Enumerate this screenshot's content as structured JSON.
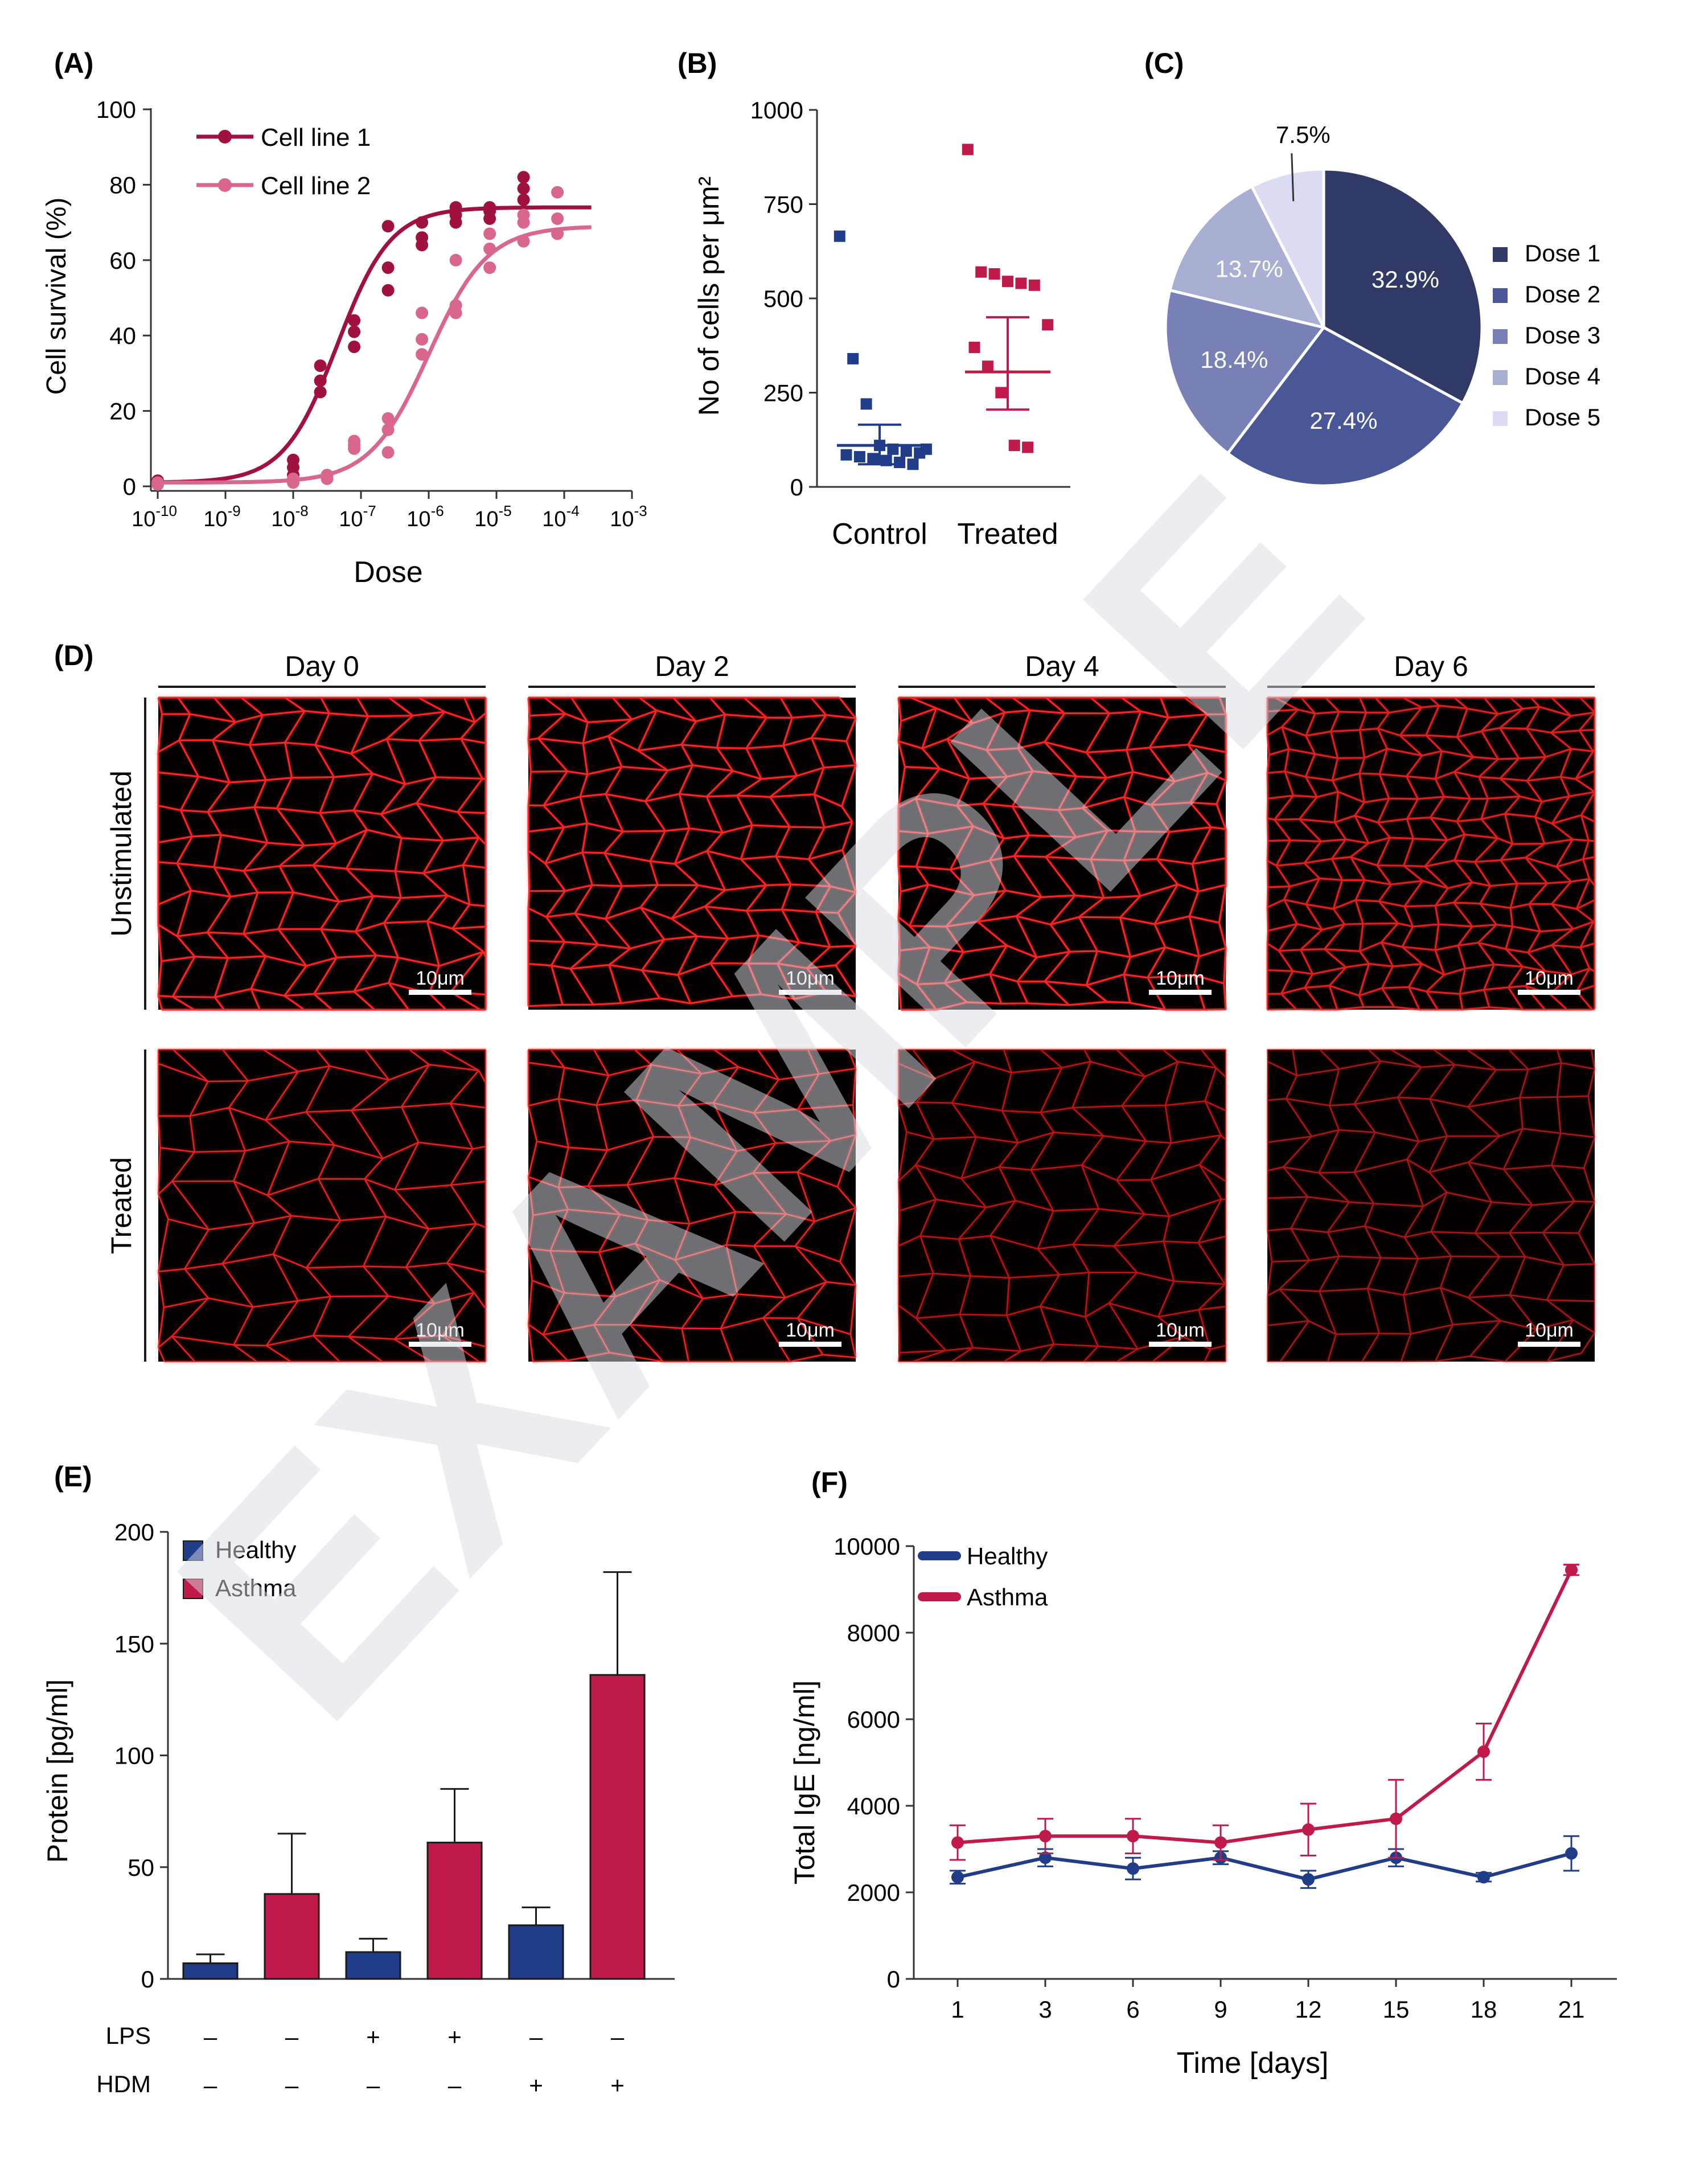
{
  "colors": {
    "cellline1": "#a0123d",
    "cellline2": "#d8668f",
    "navy": "#213d8a",
    "crimson": "#c01a4a",
    "pie": [
      "#313a66",
      "#4a5796",
      "#7880b5",
      "#a9aed3",
      "#dadcf3"
    ],
    "micro_edge": "#ff2020",
    "watermark": "#d9dce3"
  },
  "watermark": "EXAMPLE",
  "panel_labels": {
    "a": "(A)",
    "b": "(B)",
    "c": "(C)",
    "d": "(D)",
    "e": "(E)",
    "f": "(F)"
  },
  "chart_data": [
    {
      "id": "A",
      "type": "scatter",
      "xscale": "log",
      "xlabel": "Dose",
      "ylabel": "Cell survival (%)",
      "xlim_exp": [
        -10,
        -3
      ],
      "xticks_exp": [
        "-10",
        "-9",
        "-8",
        "-7",
        "-6",
        "-5",
        "-4",
        "-3"
      ],
      "xtick_base": "10",
      "ylim": [
        0,
        100
      ],
      "yticks": [
        "0",
        "20",
        "40",
        "60",
        "80",
        "100"
      ],
      "legend": "top-left",
      "series": [
        {
          "name": "Cell line 1",
          "points": [
            [
              -10,
              1
            ],
            [
              -10,
              1.5
            ],
            [
              -8,
              3
            ],
            [
              -8,
              5
            ],
            [
              -8,
              7
            ],
            [
              -7.6,
              25
            ],
            [
              -7.6,
              28
            ],
            [
              -7.6,
              32
            ],
            [
              -7.1,
              37
            ],
            [
              -7.1,
              41
            ],
            [
              -7.1,
              44
            ],
            [
              -6.6,
              52
            ],
            [
              -6.6,
              58
            ],
            [
              -6.6,
              69
            ],
            [
              -6.1,
              64
            ],
            [
              -6.1,
              66
            ],
            [
              -6.1,
              70
            ],
            [
              -5.6,
              70
            ],
            [
              -5.6,
              72
            ],
            [
              -5.6,
              74
            ],
            [
              -5.1,
              71
            ],
            [
              -5.1,
              73
            ],
            [
              -5.1,
              74
            ],
            [
              -4.6,
              76
            ],
            [
              -4.6,
              79
            ],
            [
              -4.6,
              82
            ]
          ],
          "fit": {
            "bottom": 1,
            "top": 74,
            "logec50": -7.35,
            "hill": 1.1
          }
        },
        {
          "name": "Cell line 2",
          "points": [
            [
              -10,
              0.5
            ],
            [
              -10,
              1
            ],
            [
              -8,
              1
            ],
            [
              -8,
              2
            ],
            [
              -7.5,
              2
            ],
            [
              -7.5,
              3
            ],
            [
              -7.1,
              10
            ],
            [
              -7.1,
              11
            ],
            [
              -7.1,
              12
            ],
            [
              -6.6,
              9
            ],
            [
              -6.6,
              15
            ],
            [
              -6.6,
              18
            ],
            [
              -6.1,
              35
            ],
            [
              -6.1,
              39
            ],
            [
              -6.1,
              46
            ],
            [
              -5.6,
              46
            ],
            [
              -5.6,
              48
            ],
            [
              -5.6,
              60
            ],
            [
              -5.1,
              58
            ],
            [
              -5.1,
              63
            ],
            [
              -5.1,
              67
            ],
            [
              -4.6,
              65
            ],
            [
              -4.6,
              70
            ],
            [
              -4.6,
              72
            ],
            [
              -4.1,
              67
            ],
            [
              -4.1,
              71
            ],
            [
              -4.1,
              78
            ]
          ],
          "fit": {
            "bottom": 1,
            "top": 69,
            "logec50": -6.0,
            "hill": 1.0
          }
        }
      ]
    },
    {
      "id": "B",
      "type": "scatter",
      "xlabel": "",
      "ylabel": "No of cells per μm²",
      "categories": [
        "Control",
        "Treated"
      ],
      "ylim": [
        0,
        1000
      ],
      "yticks": [
        "0",
        "250",
        "500",
        "750",
        "1000"
      ],
      "series": [
        {
          "name": "Control",
          "values": [
            665,
            340,
            220,
            110,
            100,
            95,
            90,
            85,
            80,
            75,
            70,
            65,
            60,
            100
          ],
          "mean": 110,
          "err_low": 60,
          "err_high": 165
        },
        {
          "name": "Treated",
          "values": [
            895,
            570,
            565,
            545,
            540,
            535,
            430,
            370,
            320,
            250,
            110,
            105
          ],
          "mean": 305,
          "err_low": 205,
          "err_high": 450
        }
      ]
    },
    {
      "id": "C",
      "type": "pie",
      "labels": [
        "Dose 1",
        "Dose 2",
        "Dose 3",
        "Dose 4",
        "Dose 5"
      ],
      "values": [
        32.9,
        27.4,
        18.4,
        13.7,
        7.5
      ],
      "value_labels": [
        "32.9%",
        "27.4%",
        "18.4%",
        "13.7%",
        "7.5%"
      ],
      "legend": "right"
    },
    {
      "id": "E",
      "type": "bar",
      "ylabel": "Protein  [pg/ml]",
      "ylim": [
        0,
        200
      ],
      "yticks": [
        "0",
        "50",
        "100",
        "150",
        "200"
      ],
      "legend": "top-left",
      "series_names": [
        "Healthy",
        "Asthma"
      ],
      "bars": [
        {
          "series": "Healthy",
          "value": 7,
          "err": 11
        },
        {
          "series": "Asthma",
          "value": 38,
          "err": 65
        },
        {
          "series": "Healthy",
          "value": 12,
          "err": 18
        },
        {
          "series": "Asthma",
          "value": 61,
          "err": 85
        },
        {
          "series": "Healthy",
          "value": 24,
          "err": 32
        },
        {
          "series": "Asthma",
          "value": 136,
          "err": 182
        }
      ],
      "conditions": [
        {
          "label": "LPS",
          "marks": [
            "–",
            "–",
            "+",
            "+",
            "–",
            "–"
          ]
        },
        {
          "label": "HDM",
          "marks": [
            "–",
            "–",
            "–",
            "–",
            "+",
            "+"
          ]
        }
      ]
    },
    {
      "id": "F",
      "type": "line",
      "xlabel": "Time [days]",
      "ylabel": "Total IgE  [ng/ml]",
      "categories": [
        "1",
        "3",
        "6",
        "9",
        "12",
        "15",
        "18",
        "21"
      ],
      "ylim": [
        0,
        10000
      ],
      "yticks": [
        "0",
        "2000",
        "4000",
        "6000",
        "8000",
        "10000"
      ],
      "legend": "top-left",
      "series": [
        {
          "name": "Healthy",
          "values": [
            2350,
            2800,
            2550,
            2800,
            2300,
            2800,
            2350,
            2900
          ],
          "err": [
            150,
            200,
            250,
            150,
            200,
            200,
            100,
            400
          ]
        },
        {
          "name": "Asthma",
          "values": [
            3150,
            3300,
            3300,
            3150,
            3450,
            3700,
            5250,
            9450
          ],
          "err": [
            400,
            400,
            400,
            400,
            600,
            900,
            650,
            120
          ]
        }
      ]
    }
  ],
  "micrographs": {
    "columns": [
      "Day 0",
      "Day 2",
      "Day 4",
      "Day 6"
    ],
    "rows": [
      "Unstimulated",
      "Treated"
    ],
    "scale_bar": "10μm"
  }
}
